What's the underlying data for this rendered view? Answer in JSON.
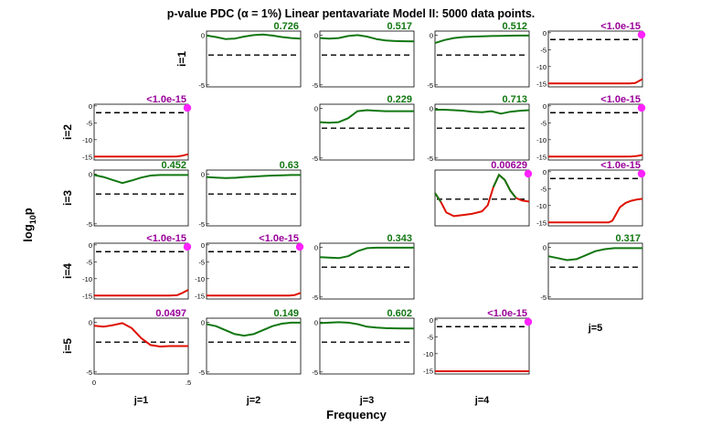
{
  "title": "p-value PDC (α = 1%) Linear pentavariate Model II: 5000 data points.",
  "ylabel": "log10p",
  "ylabel_main": "log",
  "ylabel_sub": "10",
  "ylabel_tail": "p",
  "xlabel": "Frequency",
  "row_labels": [
    "i=1",
    "i=2",
    "i=3",
    "i=4",
    "i=5"
  ],
  "col_labels": [
    "j=1",
    "j=2",
    "j=3",
    "j=4",
    "j=5"
  ],
  "colors": {
    "significant_curve": "#dd1100",
    "nonsignificant_curve": "#117711",
    "significant_text": "#990099",
    "nonsignificant_text": "#117711",
    "marker": "#ff22ff",
    "threshold": "#000000"
  },
  "chart_data": {
    "type": "line",
    "x_range": [
      0,
      0.5
    ],
    "x_ticks": [
      "0",
      ".5"
    ],
    "threshold_log10p": -2,
    "panels": [
      {
        "i": 1,
        "j": 2,
        "pvalue": "0.726",
        "significant": false,
        "ylim": [
          -5.2,
          0.4
        ],
        "yticks": [
          "0",
          "-5"
        ],
        "x": [
          0,
          0.05,
          0.1,
          0.15,
          0.2,
          0.25,
          0.3,
          0.35,
          0.4,
          0.45,
          0.5
        ],
        "y": [
          -0.05,
          -0.2,
          -0.4,
          -0.35,
          -0.15,
          0.0,
          0.05,
          -0.05,
          -0.2,
          -0.3,
          -0.35
        ]
      },
      {
        "i": 1,
        "j": 3,
        "pvalue": "0.517",
        "significant": false,
        "ylim": [
          -5.2,
          0.4
        ],
        "yticks": [
          "0",
          "-5"
        ],
        "x": [
          0,
          0.05,
          0.1,
          0.15,
          0.2,
          0.25,
          0.3,
          0.35,
          0.4,
          0.45,
          0.5
        ],
        "y": [
          -0.3,
          -0.35,
          -0.3,
          -0.1,
          0.0,
          -0.15,
          -0.4,
          -0.55,
          -0.6,
          -0.62,
          -0.63
        ]
      },
      {
        "i": 1,
        "j": 4,
        "pvalue": "0.512",
        "significant": false,
        "ylim": [
          -5.2,
          0.4
        ],
        "yticks": [
          "0",
          "-5"
        ],
        "x": [
          0,
          0.05,
          0.1,
          0.15,
          0.2,
          0.25,
          0.3,
          0.35,
          0.4,
          0.45,
          0.5
        ],
        "y": [
          -0.8,
          -0.5,
          -0.3,
          -0.2,
          -0.15,
          -0.12,
          -0.1,
          -0.08,
          -0.06,
          -0.05,
          -0.05
        ]
      },
      {
        "i": 1,
        "j": 5,
        "pvalue": "<1.0e-15",
        "significant": true,
        "ylim": [
          -16,
          0.5
        ],
        "yticks": [
          "0",
          "-5",
          "-10",
          "-15"
        ],
        "x": [
          0,
          0.05,
          0.1,
          0.15,
          0.2,
          0.25,
          0.3,
          0.35,
          0.4,
          0.43,
          0.46,
          0.48,
          0.5
        ],
        "y": [
          -15,
          -15,
          -15,
          -15,
          -15,
          -15,
          -15,
          -15,
          -15,
          -15,
          -14.9,
          -14.3,
          -13.7
        ]
      },
      {
        "i": 2,
        "j": 1,
        "pvalue": "<1.0e-15",
        "significant": true,
        "ylim": [
          -16,
          0.5
        ],
        "yticks": [
          "0",
          "-5",
          "-10",
          "-15"
        ],
        "x": [
          0,
          0.05,
          0.1,
          0.15,
          0.2,
          0.25,
          0.3,
          0.35,
          0.4,
          0.44,
          0.47,
          0.5
        ],
        "y": [
          -15,
          -15,
          -15,
          -15,
          -15,
          -15,
          -15,
          -15,
          -15,
          -14.95,
          -14.7,
          -14.3
        ]
      },
      {
        "i": 2,
        "j": 3,
        "pvalue": "0.229",
        "significant": false,
        "ylim": [
          -5.2,
          0.4
        ],
        "yticks": [
          "0",
          "-5"
        ],
        "x": [
          0,
          0.05,
          0.1,
          0.15,
          0.2,
          0.25,
          0.3,
          0.35,
          0.4,
          0.45,
          0.5
        ],
        "y": [
          -1.4,
          -1.45,
          -1.4,
          -1.0,
          -0.3,
          -0.2,
          -0.25,
          -0.3,
          -0.3,
          -0.3,
          -0.3
        ]
      },
      {
        "i": 2,
        "j": 4,
        "pvalue": "0.713",
        "significant": false,
        "ylim": [
          -5.2,
          0.4
        ],
        "yticks": [
          "0",
          "-5"
        ],
        "x": [
          0,
          0.05,
          0.1,
          0.15,
          0.2,
          0.25,
          0.3,
          0.35,
          0.4,
          0.45,
          0.5
        ],
        "y": [
          -0.15,
          -0.15,
          -0.2,
          -0.25,
          -0.35,
          -0.4,
          -0.3,
          -0.55,
          -0.35,
          -0.25,
          -0.2
        ]
      },
      {
        "i": 2,
        "j": 5,
        "pvalue": "<1.0e-15",
        "significant": true,
        "ylim": [
          -16,
          0.5
        ],
        "yticks": [
          "0",
          "-5",
          "-10",
          "-15"
        ],
        "x": [
          0,
          0.05,
          0.1,
          0.15,
          0.2,
          0.25,
          0.3,
          0.35,
          0.4,
          0.44,
          0.47,
          0.5
        ],
        "y": [
          -15,
          -15,
          -15,
          -15,
          -15,
          -15,
          -15,
          -15,
          -15,
          -14.95,
          -14.8,
          -14.5
        ]
      },
      {
        "i": 3,
        "j": 1,
        "pvalue": "0.452",
        "significant": false,
        "ylim": [
          -5.2,
          0.4
        ],
        "yticks": [
          "0",
          "-5"
        ],
        "x": [
          0,
          0.05,
          0.1,
          0.15,
          0.2,
          0.25,
          0.3,
          0.35,
          0.4,
          0.45,
          0.5
        ],
        "y": [
          -0.1,
          -0.3,
          -0.6,
          -0.9,
          -0.65,
          -0.35,
          -0.15,
          -0.1,
          -0.1,
          -0.1,
          -0.1
        ]
      },
      {
        "i": 3,
        "j": 2,
        "pvalue": "0.63",
        "significant": false,
        "ylim": [
          -5.2,
          0.4
        ],
        "yticks": [
          "0",
          "-5"
        ],
        "x": [
          0,
          0.05,
          0.1,
          0.15,
          0.2,
          0.25,
          0.3,
          0.35,
          0.4,
          0.45,
          0.5
        ],
        "y": [
          -0.3,
          -0.35,
          -0.4,
          -0.38,
          -0.3,
          -0.25,
          -0.2,
          -0.15,
          -0.12,
          -0.1,
          -0.1
        ]
      },
      {
        "i": 3,
        "j": 4,
        "pvalue": "0.00629",
        "significant": true,
        "ylim": [
          -4.2,
          0.4
        ],
        "yticks": [],
        "x": [
          0,
          0.03,
          0.06,
          0.1,
          0.15,
          0.2,
          0.25,
          0.28,
          0.31,
          0.34,
          0.37,
          0.4,
          0.43,
          0.46,
          0.5
        ],
        "y": [
          -1.5,
          -2.2,
          -3.1,
          -3.4,
          -3.3,
          -3.2,
          -3.0,
          -2.5,
          -1.0,
          0.0,
          -0.4,
          -1.3,
          -1.9,
          -2.1,
          -2.2
        ]
      },
      {
        "i": 3,
        "j": 5,
        "pvalue": "<1.0e-15",
        "significant": true,
        "ylim": [
          -16,
          0.5
        ],
        "yticks": [
          "0",
          "-5",
          "-10",
          "-15"
        ],
        "x": [
          0,
          0.05,
          0.1,
          0.15,
          0.2,
          0.25,
          0.3,
          0.32,
          0.34,
          0.36,
          0.38,
          0.41,
          0.44,
          0.47,
          0.5
        ],
        "y": [
          -15,
          -15,
          -15,
          -15,
          -15,
          -15,
          -15,
          -15,
          -14.5,
          -12.5,
          -10.5,
          -9.2,
          -8.6,
          -8.2,
          -8.0
        ]
      },
      {
        "i": 4,
        "j": 1,
        "pvalue": "<1.0e-15",
        "significant": true,
        "ylim": [
          -16,
          0.5
        ],
        "yticks": [
          "0",
          "-5",
          "-10",
          "-15"
        ],
        "x": [
          0,
          0.05,
          0.1,
          0.15,
          0.2,
          0.25,
          0.3,
          0.35,
          0.4,
          0.44,
          0.47,
          0.5
        ],
        "y": [
          -15,
          -15,
          -15,
          -15,
          -15,
          -15,
          -15,
          -15,
          -15,
          -14.9,
          -14.2,
          -13.3
        ]
      },
      {
        "i": 4,
        "j": 2,
        "pvalue": "<1.0e-15",
        "significant": true,
        "ylim": [
          -16,
          0.5
        ],
        "yticks": [
          "0",
          "-5",
          "-10",
          "-15"
        ],
        "x": [
          0,
          0.05,
          0.1,
          0.15,
          0.2,
          0.25,
          0.3,
          0.35,
          0.4,
          0.44,
          0.47,
          0.5
        ],
        "y": [
          -15,
          -15,
          -15,
          -15,
          -15,
          -15,
          -15,
          -15,
          -15,
          -15,
          -14.8,
          -14.2
        ]
      },
      {
        "i": 4,
        "j": 3,
        "pvalue": "0.343",
        "significant": false,
        "ylim": [
          -5.2,
          0.4
        ],
        "yticks": [
          "0",
          "-5"
        ],
        "x": [
          0,
          0.05,
          0.1,
          0.15,
          0.2,
          0.25,
          0.3,
          0.35,
          0.4,
          0.45,
          0.5
        ],
        "y": [
          -1.0,
          -1.05,
          -1.1,
          -0.9,
          -0.4,
          -0.1,
          -0.05,
          -0.05,
          -0.05,
          -0.05,
          -0.05
        ]
      },
      {
        "i": 4,
        "j": 5,
        "pvalue": "0.317",
        "significant": false,
        "ylim": [
          -5.2,
          0.4
        ],
        "yticks": [
          "0",
          "-5"
        ],
        "x": [
          0,
          0.05,
          0.1,
          0.15,
          0.2,
          0.25,
          0.3,
          0.35,
          0.4,
          0.45,
          0.5
        ],
        "y": [
          -0.9,
          -1.1,
          -1.3,
          -1.2,
          -0.8,
          -0.4,
          -0.2,
          -0.1,
          -0.1,
          -0.1,
          -0.1
        ]
      },
      {
        "i": 5,
        "j": 1,
        "pvalue": "0.0497",
        "significant": true,
        "ylim": [
          -5.2,
          0.4
        ],
        "yticks": [
          "0",
          "-5"
        ],
        "x": [
          0,
          0.05,
          0.1,
          0.15,
          0.2,
          0.25,
          0.3,
          0.35,
          0.4,
          0.45,
          0.5
        ],
        "y": [
          -0.35,
          -0.45,
          -0.3,
          -0.1,
          -0.6,
          -1.6,
          -2.3,
          -2.45,
          -2.4,
          -2.4,
          -2.4
        ]
      },
      {
        "i": 5,
        "j": 2,
        "pvalue": "0.149",
        "significant": false,
        "ylim": [
          -5.2,
          0.4
        ],
        "yticks": [
          "0",
          "-5"
        ],
        "x": [
          0,
          0.05,
          0.1,
          0.15,
          0.2,
          0.25,
          0.3,
          0.35,
          0.4,
          0.45,
          0.5
        ],
        "y": [
          -0.2,
          -0.4,
          -0.8,
          -1.2,
          -1.35,
          -1.2,
          -0.8,
          -0.4,
          -0.15,
          -0.05,
          -0.05
        ]
      },
      {
        "i": 5,
        "j": 3,
        "pvalue": "0.602",
        "significant": false,
        "ylim": [
          -5.2,
          0.4
        ],
        "yticks": [
          "0",
          "-5"
        ],
        "x": [
          0,
          0.05,
          0.1,
          0.15,
          0.2,
          0.25,
          0.3,
          0.35,
          0.4,
          0.45,
          0.5
        ],
        "y": [
          -0.1,
          -0.05,
          0.0,
          -0.05,
          -0.2,
          -0.45,
          -0.55,
          -0.6,
          -0.62,
          -0.63,
          -0.64
        ]
      },
      {
        "i": 5,
        "j": 4,
        "pvalue": "<1.0e-15",
        "significant": true,
        "ylim": [
          -16,
          0.5
        ],
        "yticks": [
          "0",
          "-5",
          "-10",
          "-15"
        ],
        "x": [
          0,
          0.1,
          0.2,
          0.3,
          0.4,
          0.5
        ],
        "y": [
          -15.2,
          -15.2,
          -15.2,
          -15.2,
          -15.2,
          -15.2
        ]
      }
    ]
  }
}
